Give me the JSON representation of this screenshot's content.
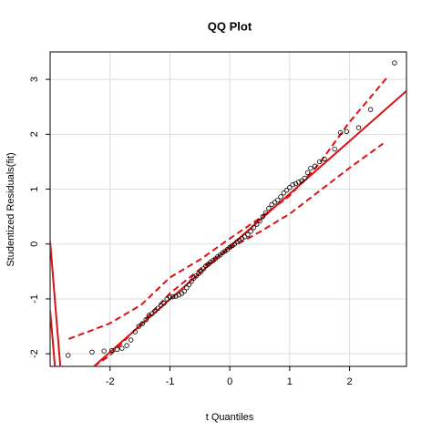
{
  "chart_data": {
    "type": "scatter",
    "title": "QQ Plot",
    "x_label": "t Quantiles",
    "y_label": "Studentized Residuals(fit)",
    "xlim": [
      -3,
      2.95
    ],
    "ylim": [
      -2.23,
      3.5
    ],
    "xticks": [
      -2,
      -1,
      0,
      1,
      2
    ],
    "yticks": [
      -2,
      -1,
      0,
      1,
      2,
      3
    ],
    "grid": true,
    "point_color": "#000000",
    "line_color": "#dd1111",
    "x": [
      -2.7,
      -2.3,
      -2.1,
      -1.97,
      -1.88,
      -1.8,
      -1.72,
      -1.65,
      -1.58,
      -1.52,
      -1.46,
      -1.4,
      -1.35,
      -1.3,
      -1.25,
      -1.2,
      -1.15,
      -1.1,
      -1.05,
      -1.0,
      -0.95,
      -0.9,
      -0.85,
      -0.8,
      -0.76,
      -0.72,
      -0.68,
      -0.64,
      -0.6,
      -0.56,
      -0.52,
      -0.48,
      -0.44,
      -0.4,
      -0.36,
      -0.32,
      -0.28,
      -0.24,
      -0.2,
      -0.16,
      -0.12,
      -0.08,
      -0.04,
      0.0,
      0.04,
      0.08,
      0.12,
      0.16,
      0.2,
      0.25,
      0.3,
      0.35,
      0.4,
      0.45,
      0.5,
      0.55,
      0.6,
      0.65,
      0.7,
      0.75,
      0.8,
      0.85,
      0.9,
      0.95,
      1.0,
      1.05,
      1.1,
      1.15,
      1.2,
      1.25,
      1.3,
      1.35,
      1.42,
      1.5,
      1.58,
      1.75,
      1.85,
      1.95,
      2.15,
      2.35,
      2.75
    ],
    "values": [
      -2.03,
      -1.97,
      -1.95,
      -1.94,
      -1.92,
      -1.9,
      -1.85,
      -1.75,
      -1.6,
      -1.5,
      -1.45,
      -1.38,
      -1.3,
      -1.27,
      -1.22,
      -1.17,
      -1.12,
      -1.08,
      -1.0,
      -0.97,
      -0.96,
      -0.95,
      -0.93,
      -0.9,
      -0.86,
      -0.8,
      -0.74,
      -0.68,
      -0.62,
      -0.58,
      -0.54,
      -0.5,
      -0.45,
      -0.4,
      -0.37,
      -0.33,
      -0.3,
      -0.27,
      -0.23,
      -0.2,
      -0.16,
      -0.13,
      -0.1,
      -0.06,
      -0.03,
      0.0,
      0.04,
      0.07,
      0.1,
      0.13,
      0.17,
      0.23,
      0.3,
      0.36,
      0.42,
      0.5,
      0.57,
      0.65,
      0.72,
      0.76,
      0.8,
      0.86,
      0.93,
      0.98,
      1.03,
      1.08,
      1.1,
      1.13,
      1.15,
      1.2,
      1.3,
      1.38,
      1.42,
      1.5,
      1.55,
      1.73,
      2.03,
      2.05,
      2.12,
      2.45,
      3.3
    ],
    "lines": [
      {
        "style": "solid",
        "x": [
          -2.27,
          2.95
        ],
        "values": [
          -2.23,
          2.79
        ]
      },
      {
        "style": "dashed",
        "x": [
          -2.69,
          -2.01,
          -1.48,
          -1.0,
          -0.49,
          0.0,
          0.5,
          1.0,
          1.49,
          1.99,
          2.63
        ],
        "values": [
          -1.73,
          -1.45,
          -1.11,
          -0.61,
          -0.28,
          0.1,
          0.47,
          0.88,
          1.46,
          2.21,
          3.04
        ]
      },
      {
        "style": "dashed",
        "x": [
          -2.27,
          -2.0,
          -1.48,
          -1.0,
          -0.49,
          0.0,
          0.5,
          1.0,
          1.49,
          1.99,
          2.56
        ],
        "values": [
          -2.23,
          -2.03,
          -1.45,
          -0.9,
          -0.45,
          -0.08,
          0.22,
          0.55,
          0.96,
          1.38,
          1.83
        ]
      },
      {
        "style": "solid",
        "x": [
          -3,
          -2.83
        ],
        "values": [
          0.05,
          -2.23
        ]
      },
      {
        "style": "solid",
        "x": [
          -3,
          -2.92
        ],
        "values": [
          -1.2,
          -2.23
        ]
      }
    ]
  }
}
